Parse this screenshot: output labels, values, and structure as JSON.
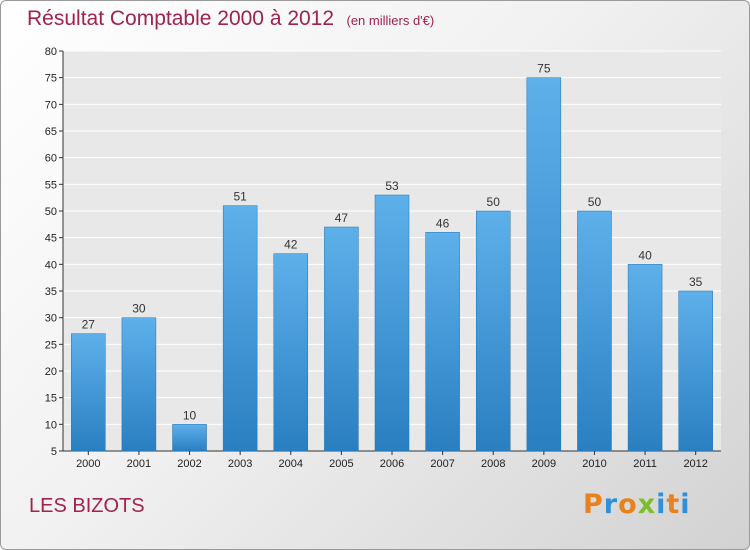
{
  "chart_data": {
    "type": "bar",
    "title": "Résultat Comptable 2000 à 2012",
    "unit_note": "(en milliers d'€)",
    "categories": [
      "2000",
      "2001",
      "2002",
      "2003",
      "2004",
      "2005",
      "2006",
      "2007",
      "2008",
      "2009",
      "2010",
      "2011",
      "2012"
    ],
    "values": [
      27,
      30,
      10,
      51,
      42,
      47,
      53,
      46,
      50,
      75,
      50,
      40,
      35
    ],
    "ylim": [
      5,
      80
    ],
    "yticks": [
      5,
      10,
      15,
      20,
      25,
      30,
      35,
      40,
      45,
      50,
      55,
      60,
      65,
      70,
      75,
      80
    ],
    "grid": true,
    "bar_color": "#4a9ddc"
  },
  "footer": {
    "commune": "LES BIZOTS",
    "logo_letters": [
      {
        "ch": "P",
        "color": "#e8821e"
      },
      {
        "ch": "r",
        "color": "#2f8fd8"
      },
      {
        "ch": "o",
        "color": "#e8821e"
      },
      {
        "ch": "x",
        "color": "#7cbd2f"
      },
      {
        "ch": "i",
        "color": "#2f8fd8"
      },
      {
        "ch": "t",
        "color": "#e8821e"
      },
      {
        "ch": "i",
        "color": "#2f8fd8"
      }
    ]
  }
}
